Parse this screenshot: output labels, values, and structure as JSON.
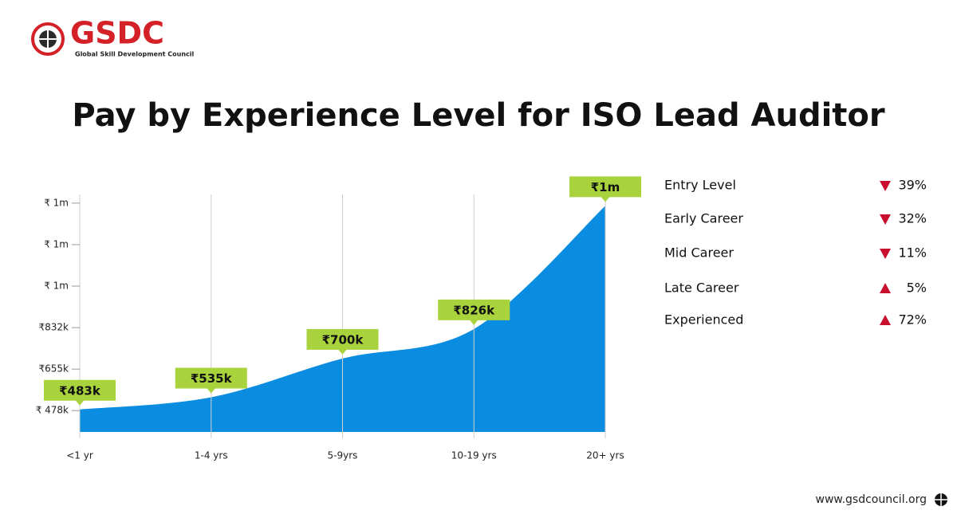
{
  "logo": {
    "name": "GSDC",
    "tagline": "Global Skill Development Council"
  },
  "chart_data": {
    "type": "area",
    "title": "Pay by Experience Level for ISO Lead Auditor",
    "categories": [
      "<1 yr",
      "1-4 yrs",
      "5-9yrs",
      "10-19 yrs",
      "20+ yrs"
    ],
    "values": [
      483000,
      535000,
      700000,
      826000,
      1351000
    ],
    "value_labels": [
      "₹483k",
      "₹535k",
      "₹700k",
      "₹826k",
      "₹1m"
    ],
    "color": "#0a8de0",
    "label_color": "#a9d33c",
    "ylim": [
      387000,
      1400000
    ],
    "yticks": [
      {
        "value": 478000,
        "label": "₹ 478k"
      },
      {
        "value": 655000,
        "label": "₹655k"
      },
      {
        "value": 832000,
        "label": "₹832k"
      },
      {
        "value": 1009000,
        "label": "₹ 1m"
      },
      {
        "value": 1186000,
        "label": "₹ 1m"
      },
      {
        "value": 1363000,
        "label": "₹ 1m"
      }
    ]
  },
  "changes": [
    {
      "label": "Entry Level",
      "direction": "down",
      "value": "39%"
    },
    {
      "label": "Early Career",
      "direction": "down",
      "value": "32%"
    },
    {
      "label": "Mid Career",
      "direction": "down",
      "value": "11%"
    },
    {
      "label": "Late Career",
      "direction": "up",
      "value": "5%"
    },
    {
      "label": "Experienced",
      "direction": "up",
      "value": "72%"
    }
  ],
  "footer": "www.gsdcouncil.org"
}
